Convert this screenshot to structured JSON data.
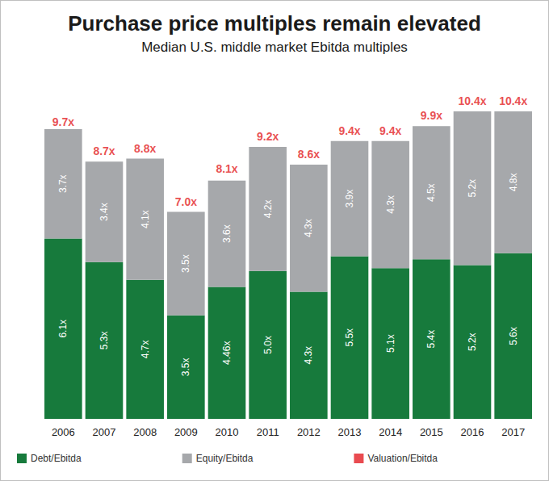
{
  "chart_data": {
    "type": "bar",
    "title": "Purchase price multiples remain elevated",
    "subtitle": "Median U.S. middle market Ebitda multiples",
    "stacked": true,
    "categories": [
      "2006",
      "2007",
      "2008",
      "2009",
      "2010",
      "2011",
      "2012",
      "2013",
      "2014",
      "2015",
      "2016",
      "2017"
    ],
    "series": [
      {
        "name": "Debt/Ebitda",
        "color": "#177a3c",
        "values": [
          6.1,
          5.3,
          4.7,
          3.5,
          4.46,
          5.0,
          4.3,
          5.5,
          5.1,
          5.4,
          5.2,
          5.6
        ],
        "value_labels": [
          "6.1x",
          "5.3x",
          "4.7x",
          "3.5x",
          "4.46x",
          "5.0x",
          "4.3x",
          "5.5x",
          "5.1x",
          "5.4x",
          "5.2x",
          "5.6x"
        ]
      },
      {
        "name": "Equity/Ebitda",
        "color": "#a6a8ab",
        "values": [
          3.7,
          3.4,
          4.1,
          3.5,
          3.6,
          4.2,
          4.3,
          3.9,
          4.3,
          4.5,
          5.2,
          4.8
        ],
        "value_labels": [
          "3.7x",
          "3.4x",
          "4.1x",
          "3.5x",
          "3.6x",
          "4.2x",
          "4.3x",
          "3.9x",
          "4.3x",
          "4.5x",
          "5.2x",
          "4.8x"
        ]
      },
      {
        "name": "Valuation/Ebitda",
        "type": "scatter",
        "color": "#e31e24",
        "values": [
          9.7,
          8.7,
          8.8,
          7.0,
          8.1,
          9.2,
          8.6,
          9.4,
          9.4,
          9.9,
          10.4,
          10.4
        ],
        "value_labels": [
          "9.7x",
          "8.7x",
          "8.8x",
          "7.0x",
          "8.1x",
          "9.2x",
          "8.6x",
          "9.4x",
          "9.4x",
          "9.9x",
          "10.4x",
          "10.4x"
        ]
      }
    ],
    "ylim": [
      0,
      10.4
    ],
    "yticks": [],
    "grid": false,
    "legend": "bottom-left",
    "data_labels": true,
    "tick_labels": "x"
  }
}
